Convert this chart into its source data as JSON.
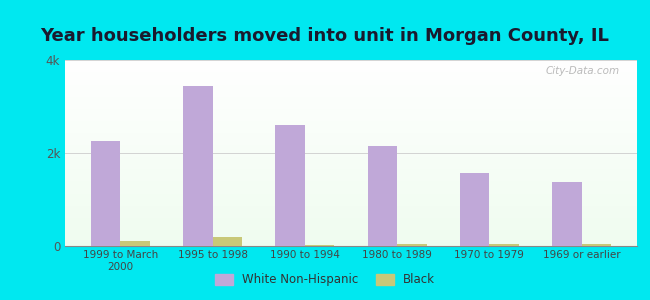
{
  "title": "Year householders moved into unit in Morgan County, IL",
  "categories": [
    "1999 to March\n2000",
    "1995 to 1998",
    "1990 to 1994",
    "1980 to 1989",
    "1970 to 1979",
    "1969 or earlier"
  ],
  "white_values": [
    2250,
    3450,
    2600,
    2150,
    1580,
    1380
  ],
  "black_values": [
    100,
    200,
    25,
    50,
    35,
    50
  ],
  "white_color": "#c0a8d8",
  "black_color": "#c8c878",
  "ylim": [
    0,
    4000
  ],
  "yticks": [
    0,
    2000,
    4000
  ],
  "ytick_labels": [
    "0",
    "2k",
    "4k"
  ],
  "bar_width": 0.32,
  "background_outer": "#00e8f0",
  "watermark": "City-Data.com",
  "legend_labels": [
    "White Non-Hispanic",
    "Black"
  ],
  "title_fontsize": 13
}
